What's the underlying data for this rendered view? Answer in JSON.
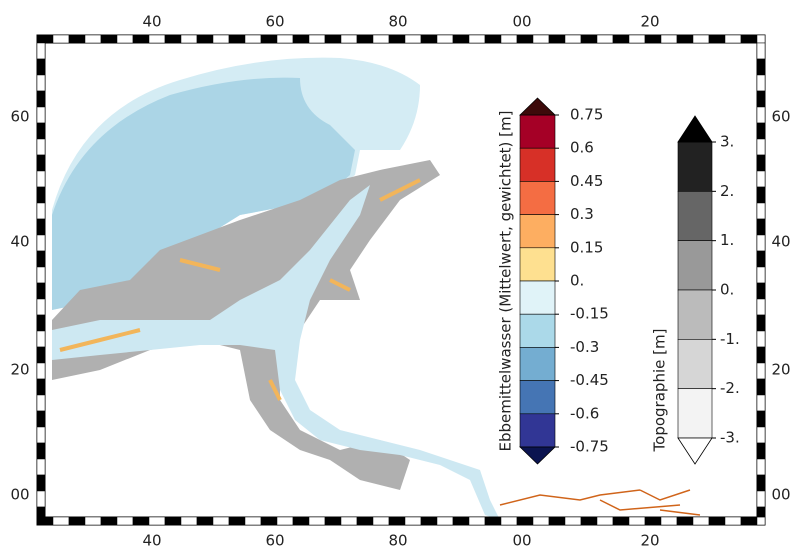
{
  "map": {
    "x_labels": [
      "40",
      "60",
      "80",
      "00",
      "20"
    ],
    "y_labels": [
      "60",
      "40",
      "20",
      "00"
    ]
  },
  "colorbars": [
    {
      "title": "Ebbemittelwasser (Mittelwert, gewichtet) [m]",
      "ticks": [
        0.75,
        0.6,
        0.45,
        0.3,
        0.15,
        {
          "value": 0,
          "label": "0."
        },
        -0.15,
        -0.3,
        -0.45,
        -0.6,
        -0.75
      ],
      "colors": [
        "#a50026",
        "#d73027",
        "#f46d43",
        "#fdae61",
        "#fee090",
        "#e0f3f8",
        "#abd9e9",
        "#74add1",
        "#4575b4",
        "#313695"
      ],
      "extend_colors": [
        "#3d0a0a",
        "#0b1450"
      ]
    },
    {
      "title": "Topographie [m]",
      "ticks": [
        {
          "value": 3,
          "label": "3."
        },
        {
          "value": 2,
          "label": "2."
        },
        {
          "value": 1,
          "label": "1."
        },
        {
          "value": 0,
          "label": "0."
        },
        {
          "value": -1,
          "label": "-1."
        },
        {
          "value": -2,
          "label": "-2."
        },
        {
          "value": -3,
          "label": "-3."
        }
      ],
      "colors": [
        "#222222",
        "#666666",
        "#999999",
        "#bbbbbb",
        "#d6d6d6",
        "#f3f3f3"
      ],
      "extend_colors": [
        "#000000",
        "#ffffff"
      ]
    }
  ]
}
